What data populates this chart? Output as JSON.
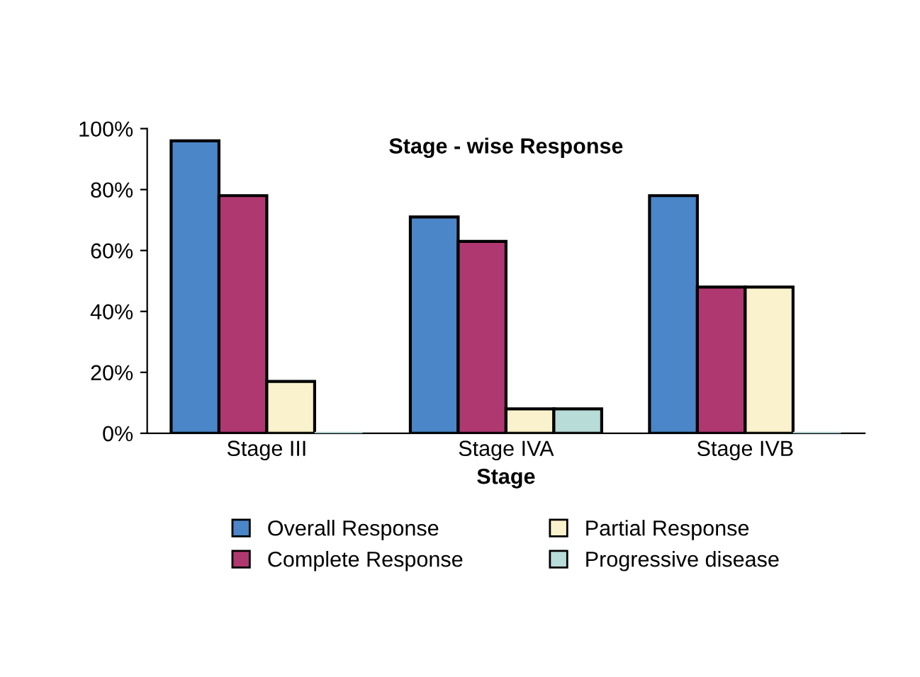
{
  "chart_data": {
    "type": "bar",
    "title": "Stage - wise Response",
    "xlabel": "Stage",
    "categories": [
      "Stage III",
      "Stage IVA",
      "Stage IVB"
    ],
    "series": [
      {
        "name": "Overall Response",
        "color": "#4a86c8",
        "values": [
          96,
          71,
          78
        ]
      },
      {
        "name": "Complete Response",
        "color": "#b03870",
        "values": [
          78,
          63,
          48
        ]
      },
      {
        "name": "Partial Response",
        "color": "#faf2cc",
        "values": [
          17,
          8,
          48
        ]
      },
      {
        "name": "Progressive disease",
        "color": "#b8dcd8",
        "values": [
          0,
          8,
          0
        ]
      }
    ],
    "ylim": [
      0,
      100
    ],
    "yticks": [
      {
        "value": 0,
        "label": "0%"
      },
      {
        "value": 20,
        "label": "20%"
      },
      {
        "value": 40,
        "label": "40%"
      },
      {
        "value": 60,
        "label": "60%"
      },
      {
        "value": 80,
        "label": "80%"
      },
      {
        "value": 100,
        "label": "100%"
      }
    ],
    "grid": false,
    "legend": "bottom"
  }
}
